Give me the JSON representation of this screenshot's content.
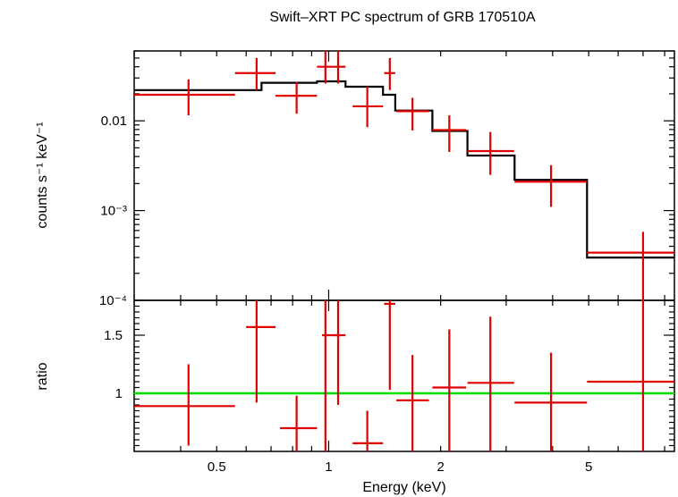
{
  "chart_data": [
    {
      "type": "line",
      "panel": "spectrum",
      "title": "Swift–XRT PC spectrum of GRB 170510A",
      "ylabel": "counts s⁻¹ keV⁻¹",
      "xscale": "log",
      "yscale": "log",
      "xlim": [
        0.3,
        8.5
      ],
      "ylim": [
        0.0001,
        0.06
      ],
      "y_tick_labels": [
        "0.01",
        "10⁻³",
        "10⁻⁴"
      ],
      "y_tick_values": [
        0.01,
        0.001,
        0.0001
      ],
      "grid": false,
      "colors": {
        "data": "#e00000",
        "model": "#000000"
      },
      "data_points": [
        {
          "x": 0.42,
          "xlo": 0.3,
          "xhi": 0.56,
          "y": 0.0195,
          "ylo": 0.0115,
          "yhi": 0.029
        },
        {
          "x": 0.64,
          "xlo": 0.56,
          "xhi": 0.72,
          "y": 0.034,
          "ylo": 0.022,
          "yhi": 0.05
        },
        {
          "x": 0.82,
          "xlo": 0.72,
          "xhi": 0.93,
          "y": 0.019,
          "ylo": 0.012,
          "yhi": 0.027
        },
        {
          "x": 0.98,
          "xlo": 0.93,
          "xhi": 1.03,
          "y": 0.04,
          "ylo": 0.026,
          "yhi": 0.06
        },
        {
          "x": 1.06,
          "xlo": 1.03,
          "xhi": 1.11,
          "y": 0.04,
          "ylo": 0.026,
          "yhi": 0.06
        },
        {
          "x": 1.27,
          "xlo": 1.16,
          "xhi": 1.4,
          "y": 0.0145,
          "ylo": 0.0085,
          "yhi": 0.024
        },
        {
          "x": 1.46,
          "xlo": 1.41,
          "xhi": 1.51,
          "y": 0.034,
          "ylo": 0.022,
          "yhi": 0.05
        },
        {
          "x": 1.68,
          "xlo": 1.52,
          "xhi": 1.86,
          "y": 0.0128,
          "ylo": 0.0078,
          "yhi": 0.018
        },
        {
          "x": 2.11,
          "xlo": 1.9,
          "xhi": 2.34,
          "y": 0.0079,
          "ylo": 0.0045,
          "yhi": 0.0115
        },
        {
          "x": 2.72,
          "xlo": 2.36,
          "xhi": 3.15,
          "y": 0.0046,
          "ylo": 0.0025,
          "yhi": 0.0075
        },
        {
          "x": 3.96,
          "xlo": 3.16,
          "xhi": 4.95,
          "y": 0.0021,
          "ylo": 0.0011,
          "yhi": 0.0032
        },
        {
          "x": 7.0,
          "xlo": 4.95,
          "xhi": 8.5,
          "y": 0.00034,
          "ylo": 0.0001,
          "yhi": 0.00058
        }
      ],
      "model_steps": [
        {
          "xlo": 0.3,
          "xhi": 0.66,
          "y": 0.022
        },
        {
          "xlo": 0.66,
          "xhi": 0.93,
          "y": 0.0265
        },
        {
          "xlo": 0.93,
          "xhi": 1.11,
          "y": 0.0275
        },
        {
          "xlo": 1.11,
          "xhi": 1.4,
          "y": 0.024
        },
        {
          "xlo": 1.4,
          "xhi": 1.51,
          "y": 0.0195
        },
        {
          "xlo": 1.51,
          "xhi": 1.9,
          "y": 0.013
        },
        {
          "xlo": 1.9,
          "xhi": 2.36,
          "y": 0.0077
        },
        {
          "xlo": 2.36,
          "xhi": 3.16,
          "y": 0.0041
        },
        {
          "xlo": 3.16,
          "xhi": 4.95,
          "y": 0.0022
        },
        {
          "xlo": 4.95,
          "xhi": 8.5,
          "y": 0.0003
        }
      ]
    },
    {
      "type": "scatter",
      "panel": "ratio",
      "xlabel": "Energy (keV)",
      "ylabel": "ratio",
      "xscale": "log",
      "yscale": "linear",
      "xlim": [
        0.3,
        8.5
      ],
      "ylim": [
        0.5,
        1.8
      ],
      "x_tick_labels": [
        "0.5",
        "1",
        "2",
        "5"
      ],
      "x_tick_values": [
        0.5,
        1,
        2,
        5
      ],
      "y_tick_labels": [
        "1",
        "1.5"
      ],
      "y_tick_values": [
        1,
        1.5
      ],
      "reference_line": 1.0,
      "colors": {
        "data": "#e00000",
        "reference": "#00e000"
      },
      "data_points": [
        {
          "x": 0.42,
          "xlo": 0.3,
          "xhi": 0.56,
          "y": 0.89,
          "ylo": 0.55,
          "yhi": 1.25
        },
        {
          "x": 0.64,
          "xlo": 0.6,
          "xhi": 0.72,
          "y": 1.57,
          "ylo": 0.92,
          "yhi": 1.8
        },
        {
          "x": 0.82,
          "xlo": 0.74,
          "xhi": 0.93,
          "y": 0.7,
          "ylo": 0.5,
          "yhi": 0.98
        },
        {
          "x": 0.98,
          "xlo": 0.96,
          "xhi": 1.08,
          "y": 1.5,
          "ylo": 0.5,
          "yhi": 1.8
        },
        {
          "x": 1.06,
          "xlo": 1.03,
          "xhi": 1.11,
          "y": 1.5,
          "ylo": 0.9,
          "yhi": 1.8
        },
        {
          "x": 1.27,
          "xlo": 1.16,
          "xhi": 1.4,
          "y": 0.57,
          "ylo": 0.5,
          "yhi": 0.85
        },
        {
          "x": 1.46,
          "xlo": 1.41,
          "xhi": 1.51,
          "y": 1.77,
          "ylo": 1.03,
          "yhi": 1.8
        },
        {
          "x": 1.68,
          "xlo": 1.52,
          "xhi": 1.86,
          "y": 0.94,
          "ylo": 0.5,
          "yhi": 1.33
        },
        {
          "x": 2.11,
          "xlo": 1.9,
          "xhi": 2.34,
          "y": 1.05,
          "ylo": 0.5,
          "yhi": 1.55
        },
        {
          "x": 2.72,
          "xlo": 2.36,
          "xhi": 3.15,
          "y": 1.09,
          "ylo": 0.5,
          "yhi": 1.66
        },
        {
          "x": 3.96,
          "xlo": 3.16,
          "xhi": 4.95,
          "y": 0.92,
          "ylo": 0.5,
          "yhi": 1.35
        },
        {
          "x": 7.0,
          "xlo": 4.95,
          "xhi": 8.5,
          "y": 1.1,
          "ylo": 0.5,
          "yhi": 1.8
        }
      ]
    }
  ]
}
